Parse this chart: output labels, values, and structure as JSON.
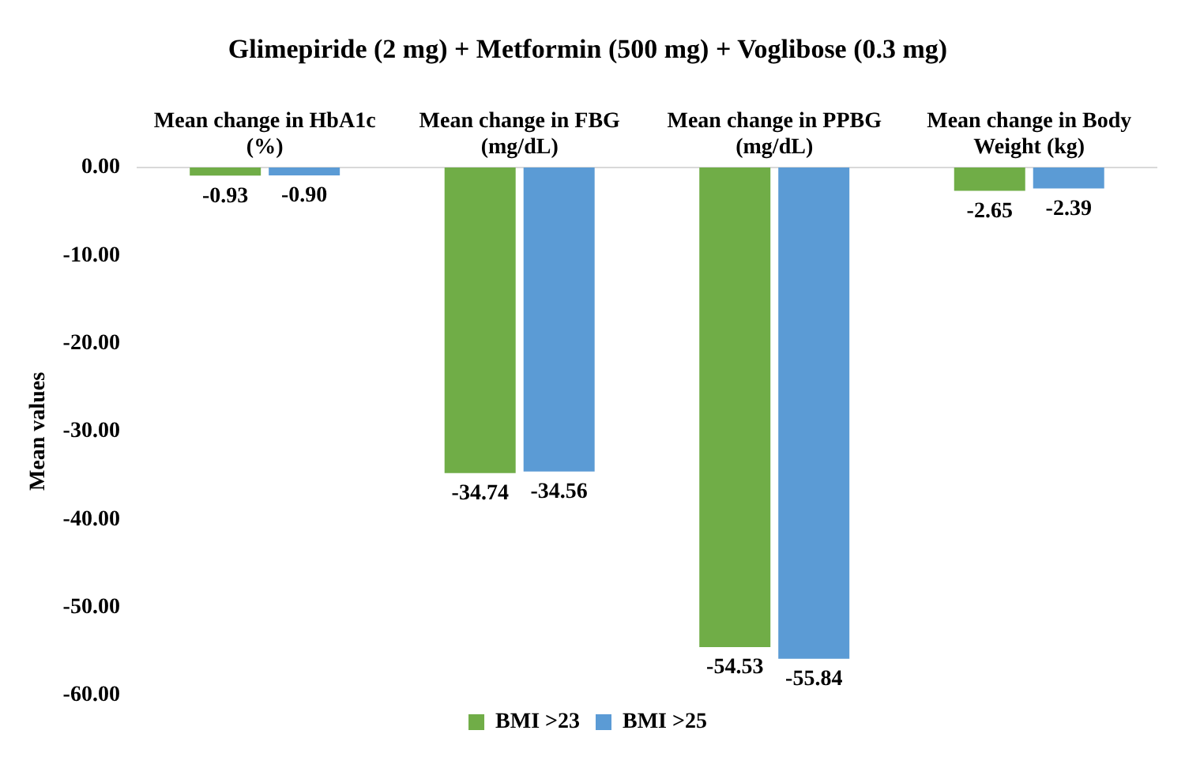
{
  "chart_data": {
    "type": "bar",
    "title": "Glimepiride (2 mg) + Metformin (500 mg) + Voglibose (0.3 mg)",
    "ylabel": "Mean values",
    "categories": [
      "Mean change in HbA1c (%)",
      "Mean change in FBG (mg/dL)",
      "Mean change in PPBG (mg/dL)",
      "Mean change in Body Weight (kg)"
    ],
    "series": [
      {
        "name": "BMI >23",
        "color": "#70ad47",
        "values": [
          -0.93,
          -34.74,
          -54.53,
          -2.65
        ],
        "value_labels": [
          "-0.93",
          "-34.74",
          "-54.53",
          "-2.65"
        ]
      },
      {
        "name": "BMI >25",
        "color": "#5b9bd5",
        "values": [
          -0.9,
          -34.56,
          -55.84,
          -2.39
        ],
        "value_labels": [
          "-0.90",
          "-34.56",
          "-55.84",
          "-2.39"
        ]
      }
    ],
    "ylim": [
      -60,
      0
    ],
    "yticks": [
      {
        "value": 0,
        "label": "0.00"
      },
      {
        "value": -10,
        "label": "-10.00"
      },
      {
        "value": -20,
        "label": "-20.00"
      },
      {
        "value": -30,
        "label": "-30.00"
      },
      {
        "value": -40,
        "label": "-40.00"
      },
      {
        "value": -50,
        "label": "-50.00"
      },
      {
        "value": -60,
        "label": "-60.00"
      }
    ],
    "grid": false,
    "legend": "bottom"
  }
}
